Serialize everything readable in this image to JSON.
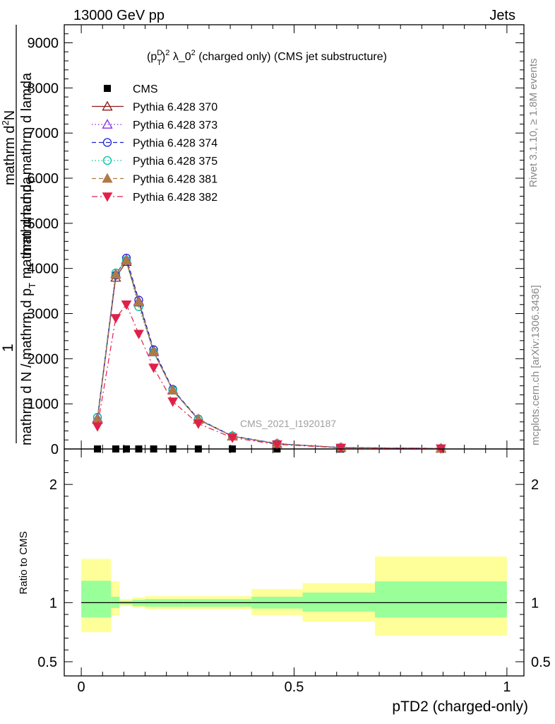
{
  "header": {
    "energy_label": "13000 GeV pp",
    "category_label": "Jets"
  },
  "side_labels": {
    "rivet": "Rivet 3.1.10, ≥ 1.8M events",
    "mcplots": "mcplots.cern.ch [arXiv:1306.3436]"
  },
  "chart_data": [
    {
      "type": "line",
      "title": "(p_T^D)^2 λ_0^2 (charged only) (CMS jet substructure)",
      "title_parts": {
        "base1": "(p",
        "sup1": "D",
        "sub1": "T",
        "base2": ")",
        "sup2": "2",
        "base3": " λ_0",
        "sup3": "2",
        "base4": " (charged only) (CMS jet substructure)"
      },
      "ylabel_lines": [
        "1",
        "mathrm d N / mathrm d p_T mathrm d lamda",
        "mathrm d²N",
        "mathrm d p_T mathrm d lamda"
      ],
      "ylabel_parts": {
        "num_outer": "1",
        "den_outer": "mathrm d N / mathrm d p",
        "den_outer_sub": "T",
        "den_outer_tail": " mathrm d lamda",
        "num_inner": "mathrm d",
        "num_inner_sup": "2",
        "num_inner_tail": "N",
        "den_inner": "mathrm d p",
        "den_inner_sub": "T",
        "den_inner_tail": " mathrm d lamda"
      },
      "xlim": [
        -0.04,
        1.04
      ],
      "ylim": [
        0,
        9400
      ],
      "yticks": [
        0,
        1000,
        2000,
        3000,
        4000,
        5000,
        6000,
        7000,
        8000,
        9000
      ],
      "ytick_labels": [
        "0",
        "1000",
        "2000",
        "3000",
        "4000",
        "5000",
        "6000",
        "7000",
        "8000",
        "9000"
      ],
      "watermark": "CMS_2021_I1920187",
      "x": [
        0.038,
        0.081,
        0.106,
        0.135,
        0.17,
        0.215,
        0.275,
        0.355,
        0.46,
        0.61,
        0.845
      ],
      "series": [
        {
          "name": "CMS",
          "color": "#000000",
          "marker": "square-filled",
          "line": "none",
          "values": [
            0,
            0,
            0,
            0,
            0,
            0,
            0,
            0,
            0,
            0,
            0
          ]
        },
        {
          "name": "Pythia 6.428 370",
          "color": "#8b1a1a",
          "marker": "triangle-open",
          "line": "solid",
          "values": [
            650,
            3800,
            4150,
            3250,
            2150,
            1300,
            650,
            280,
            115,
            30,
            12
          ]
        },
        {
          "name": "Pythia 6.428 373",
          "color": "#8a2be2",
          "marker": "triangle-open",
          "line": "dotted",
          "values": [
            680,
            3880,
            4200,
            3280,
            2180,
            1310,
            660,
            285,
            118,
            31,
            12
          ]
        },
        {
          "name": "Pythia 6.428 374",
          "color": "#2020d0",
          "marker": "circle-open",
          "line": "dashed",
          "values": [
            700,
            3850,
            4230,
            3300,
            2200,
            1320,
            665,
            288,
            120,
            32,
            13
          ]
        },
        {
          "name": "Pythia 6.428 375",
          "color": "#00c0a0",
          "marker": "circle-open",
          "line": "dotted",
          "values": [
            700,
            3900,
            4180,
            3150,
            2150,
            1300,
            660,
            285,
            118,
            31,
            12
          ]
        },
        {
          "name": "Pythia 6.428 381",
          "color": "#b07a44",
          "marker": "triangle-filled",
          "line": "dashed",
          "values": [
            660,
            3870,
            4180,
            3260,
            2160,
            1300,
            655,
            282,
            116,
            30,
            12
          ]
        },
        {
          "name": "Pythia 6.428 382",
          "color": "#e0204a",
          "marker": "triangle-down-filled",
          "line": "dashdot",
          "values": [
            500,
            2900,
            3200,
            2550,
            1800,
            1050,
            560,
            250,
            100,
            27,
            10
          ]
        }
      ]
    },
    {
      "type": "area",
      "ylabel": "Ratio to CMS",
      "xlabel": "pTD2 (charged-only)",
      "xlim": [
        -0.04,
        1.04
      ],
      "ylim": [
        0.38,
        2.3
      ],
      "yticks": [
        0.5,
        1,
        2
      ],
      "ytick_labels": [
        "0.5",
        "1",
        "2"
      ],
      "xticks": [
        0,
        0.5,
        1
      ],
      "xtick_labels": [
        "0",
        "0.5",
        "1"
      ],
      "reference_line": 1,
      "bands": [
        {
          "x0": 0.0,
          "x1": 0.07,
          "stat_lo": 0.875,
          "stat_hi": 1.185,
          "tot_lo": 0.75,
          "tot_hi": 1.37
        },
        {
          "x0": 0.07,
          "x1": 0.09,
          "stat_lo": 0.955,
          "stat_hi": 1.05,
          "tot_lo": 0.89,
          "tot_hi": 1.18
        },
        {
          "x0": 0.09,
          "x1": 0.12,
          "stat_lo": 0.985,
          "stat_hi": 1.015,
          "tot_lo": 0.97,
          "tot_hi": 1.03
        },
        {
          "x0": 0.12,
          "x1": 0.15,
          "stat_lo": 0.97,
          "stat_hi": 1.025,
          "tot_lo": 0.96,
          "tot_hi": 1.045
        },
        {
          "x0": 0.15,
          "x1": 0.19,
          "stat_lo": 0.965,
          "stat_hi": 1.03,
          "tot_lo": 0.945,
          "tot_hi": 1.055
        },
        {
          "x0": 0.19,
          "x1": 0.24,
          "stat_lo": 0.965,
          "stat_hi": 1.03,
          "tot_lo": 0.945,
          "tot_hi": 1.055
        },
        {
          "x0": 0.24,
          "x1": 0.31,
          "stat_lo": 0.965,
          "stat_hi": 1.03,
          "tot_lo": 0.945,
          "tot_hi": 1.055
        },
        {
          "x0": 0.31,
          "x1": 0.4,
          "stat_lo": 0.965,
          "stat_hi": 1.03,
          "tot_lo": 0.945,
          "tot_hi": 1.055
        },
        {
          "x0": 0.4,
          "x1": 0.52,
          "stat_lo": 0.95,
          "stat_hi": 1.05,
          "tot_lo": 0.895,
          "tot_hi": 1.115
        },
        {
          "x0": 0.52,
          "x1": 0.69,
          "stat_lo": 0.925,
          "stat_hi": 1.085,
          "tot_lo": 0.84,
          "tot_hi": 1.165
        },
        {
          "x0": 0.69,
          "x1": 1.0,
          "stat_lo": 0.875,
          "stat_hi": 1.18,
          "tot_lo": 0.72,
          "tot_hi": 1.39
        }
      ],
      "band_colors": {
        "stat": "#99ff99",
        "total": "#ffff99"
      }
    }
  ]
}
